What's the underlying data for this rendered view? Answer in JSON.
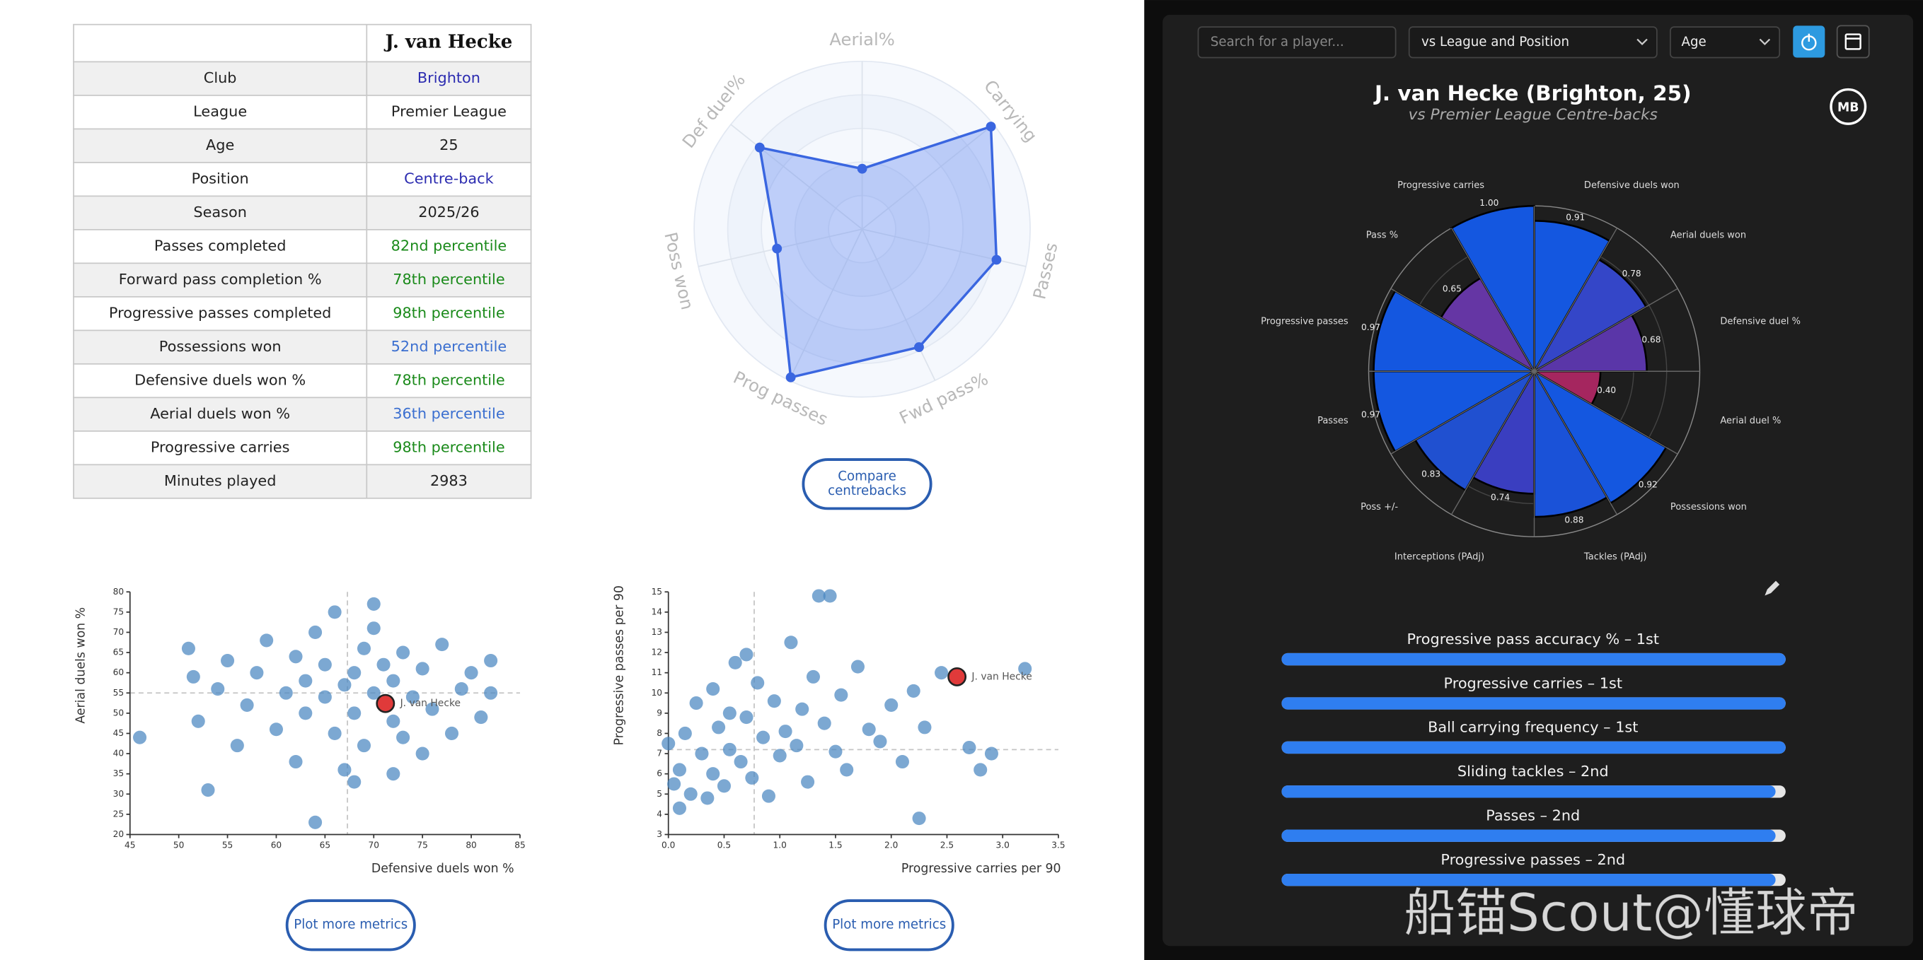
{
  "table": {
    "header": "J. van Hecke",
    "rows": [
      [
        "Club",
        "Brighton"
      ],
      [
        "League",
        "Premier League"
      ],
      [
        "Age",
        "25"
      ],
      [
        "Position",
        "Centre-back"
      ],
      [
        "Season",
        "2025/26"
      ],
      [
        "Passes completed",
        "82nd percentile"
      ],
      [
        "Forward pass completion %",
        "78th percentile"
      ],
      [
        "Progressive passes completed",
        "98th percentile"
      ],
      [
        "Possessions won",
        "52nd percentile"
      ],
      [
        "Defensive duels won %",
        "78th percentile"
      ],
      [
        "Aerial duels won %",
        "36th percentile"
      ],
      [
        "Progressive carries",
        "98th percentile"
      ],
      [
        "Minutes played",
        "2983"
      ]
    ],
    "value_colors": [
      "#2b2bb0",
      "#222222",
      "#222222",
      "#2b2bb0",
      "#222222",
      "#1a8a1a",
      "#1a8a1a",
      "#1a8a1a",
      "#3b6fd0",
      "#1a8a1a",
      "#3b6fd0",
      "#1a8a1a",
      "#222222"
    ]
  },
  "buttons": {
    "compare": [
      "Compare",
      "centrebacks"
    ],
    "plot_left": "Plot more metrics",
    "plot_right": "Plot more metrics"
  },
  "controls": {
    "search_placeholder": "Search for a player...",
    "comparison": "vs League and Position",
    "age": "Age"
  },
  "header": {
    "title": "J. van Hecke (Brighton, 25)",
    "subtitle": "vs Premier League Centre-backs",
    "logo": "MB"
  },
  "watermark": "船锚Scout@懂球帝",
  "chart_data": [
    {
      "type": "radar",
      "categories": [
        "Aerial%",
        "Carrying",
        "Passes",
        "Fwd pass%",
        "Prog passes",
        "Poss won",
        "Def duel%"
      ],
      "values": [
        36,
        98,
        82,
        78,
        98,
        52,
        78
      ],
      "rlim": [
        0,
        100
      ],
      "color": "#3a66e0"
    },
    {
      "type": "scatter",
      "x_label": "Defensive duels won %",
      "y_label": "Aerial duels won %",
      "x": [
        46,
        51,
        51.5,
        52,
        53,
        54,
        55,
        56,
        57,
        58,
        59,
        60,
        61,
        62,
        62,
        63,
        63,
        64,
        64,
        65,
        65,
        66,
        66,
        67,
        67,
        68,
        68,
        69,
        69,
        70,
        70,
        71,
        72,
        72,
        73,
        73,
        74,
        75,
        75,
        76,
        77,
        78,
        79,
        80,
        81,
        82,
        82,
        70,
        72,
        68
      ],
      "y": [
        44,
        66,
        59,
        48,
        31,
        56,
        63,
        42,
        52,
        60,
        68,
        46,
        55,
        38,
        64,
        50,
        58,
        70,
        23,
        54,
        62,
        45,
        75,
        57,
        36,
        60,
        50,
        66,
        42,
        55,
        71,
        62,
        48,
        58,
        44,
        65,
        54,
        61,
        40,
        51,
        67,
        45,
        56,
        60,
        49,
        63,
        55,
        77,
        35,
        33
      ],
      "color": "#4a86c0",
      "xlim": [
        45,
        85
      ],
      "ylim": [
        20,
        80
      ],
      "xticks": [
        45,
        50,
        55,
        60,
        65,
        70,
        75,
        80,
        85
      ],
      "yticks": [
        20,
        25,
        30,
        35,
        40,
        45,
        50,
        55,
        60,
        65,
        70,
        75,
        80
      ],
      "xref": 67.3,
      "yref": 55,
      "highlight": {
        "label": "J. van Hecke",
        "x": 71.2,
        "y": 52.4,
        "color": "#e03a3a"
      }
    },
    {
      "type": "scatter",
      "x_label": "Progressive carries per 90",
      "y_label": "Progressive passes per 90",
      "x": [
        0,
        0.05,
        0.1,
        0.1,
        0.15,
        0.2,
        0.25,
        0.3,
        0.35,
        0.4,
        0.4,
        0.45,
        0.5,
        0.55,
        0.55,
        0.6,
        0.65,
        0.7,
        0.75,
        0.8,
        0.85,
        0.9,
        0.95,
        1,
        1.05,
        1.1,
        1.15,
        1.2,
        1.25,
        1.3,
        1.4,
        1.45,
        1.5,
        1.55,
        1.6,
        1.7,
        1.8,
        1.9,
        2,
        2.1,
        2.2,
        2.25,
        2.3,
        2.45,
        2.7,
        2.8,
        2.9,
        3.2,
        1.35,
        0.7
      ],
      "y": [
        7.5,
        5.5,
        4.3,
        6.2,
        8,
        5,
        9.5,
        7,
        4.8,
        10.2,
        6,
        8.3,
        5.4,
        9,
        7.2,
        11.5,
        6.6,
        8.8,
        5.8,
        10.5,
        7.8,
        4.9,
        9.6,
        6.9,
        8.1,
        12.5,
        7.4,
        9.2,
        5.6,
        10.8,
        8.5,
        14.8,
        7.1,
        9.9,
        6.2,
        11.3,
        8.2,
        7.6,
        9.4,
        6.6,
        10.1,
        3.8,
        8.3,
        11,
        7.3,
        6.2,
        7,
        11.2,
        14.8,
        11.9
      ],
      "color": "#4a86c0",
      "xlim": [
        0,
        3.5
      ],
      "ylim": [
        3,
        15
      ],
      "xticks": [
        {
          "value": 0,
          "label": "0.0"
        },
        0.5,
        {
          "value": 1,
          "label": "1.0"
        },
        1.5,
        {
          "value": 2,
          "label": "2.0"
        },
        2.5,
        {
          "value": 3,
          "label": "3.0"
        },
        3.5
      ],
      "yticks": [
        3,
        4,
        5,
        6,
        7,
        8,
        9,
        10,
        11,
        12,
        13,
        14,
        15
      ],
      "xref": 0.77,
      "yref": 7.2,
      "highlight": {
        "label": "J. van Hecke",
        "x": 2.59,
        "y": 10.8,
        "color": "#e03a3a"
      }
    },
    {
      "type": "polar-bar",
      "categories": [
        "Defensive duels won",
        "Aerial duels won",
        "Defensive duel %",
        "Aerial duel %",
        "Possessions won",
        "Tackles (PAdj)",
        "Interceptions (PAdj)",
        "Poss +/-",
        "Passes",
        "Progressive passes",
        "Pass %",
        "Progressive carries"
      ],
      "values": [
        0.91,
        0.78,
        0.68,
        0.4,
        0.92,
        0.88,
        0.74,
        0.83,
        0.97,
        0.97,
        0.65,
        1
      ],
      "value_labels": [
        "0.91",
        "0.78",
        "0.68",
        "0.40",
        "0.92",
        "0.88",
        "0.74",
        "0.83",
        "0.97",
        "0.97",
        "0.65",
        "1.00"
      ],
      "colors": [
        "#1457e0",
        "#3446c8",
        "#5a36a8",
        "#a5265f",
        "#1457e0",
        "#1a52d8",
        "#3a3ec0",
        "#2050d0",
        "#1457e0",
        "#1457e0",
        "#6536a4",
        "#1457e0"
      ],
      "rlim": [
        0,
        1
      ]
    },
    {
      "type": "bar",
      "orientation": "horizontal",
      "categories": [
        "Progressive pass accuracy % – 1st",
        "Progressive carries – 1st",
        "Ball carrying frequency – 1st",
        "Sliding tackles – 2nd",
        "Passes – 2nd",
        "Progressive passes – 2nd"
      ],
      "values": [
        100,
        100,
        100,
        98,
        98,
        98
      ],
      "xlim": [
        0,
        100
      ],
      "color": "#2f7ef0"
    }
  ]
}
